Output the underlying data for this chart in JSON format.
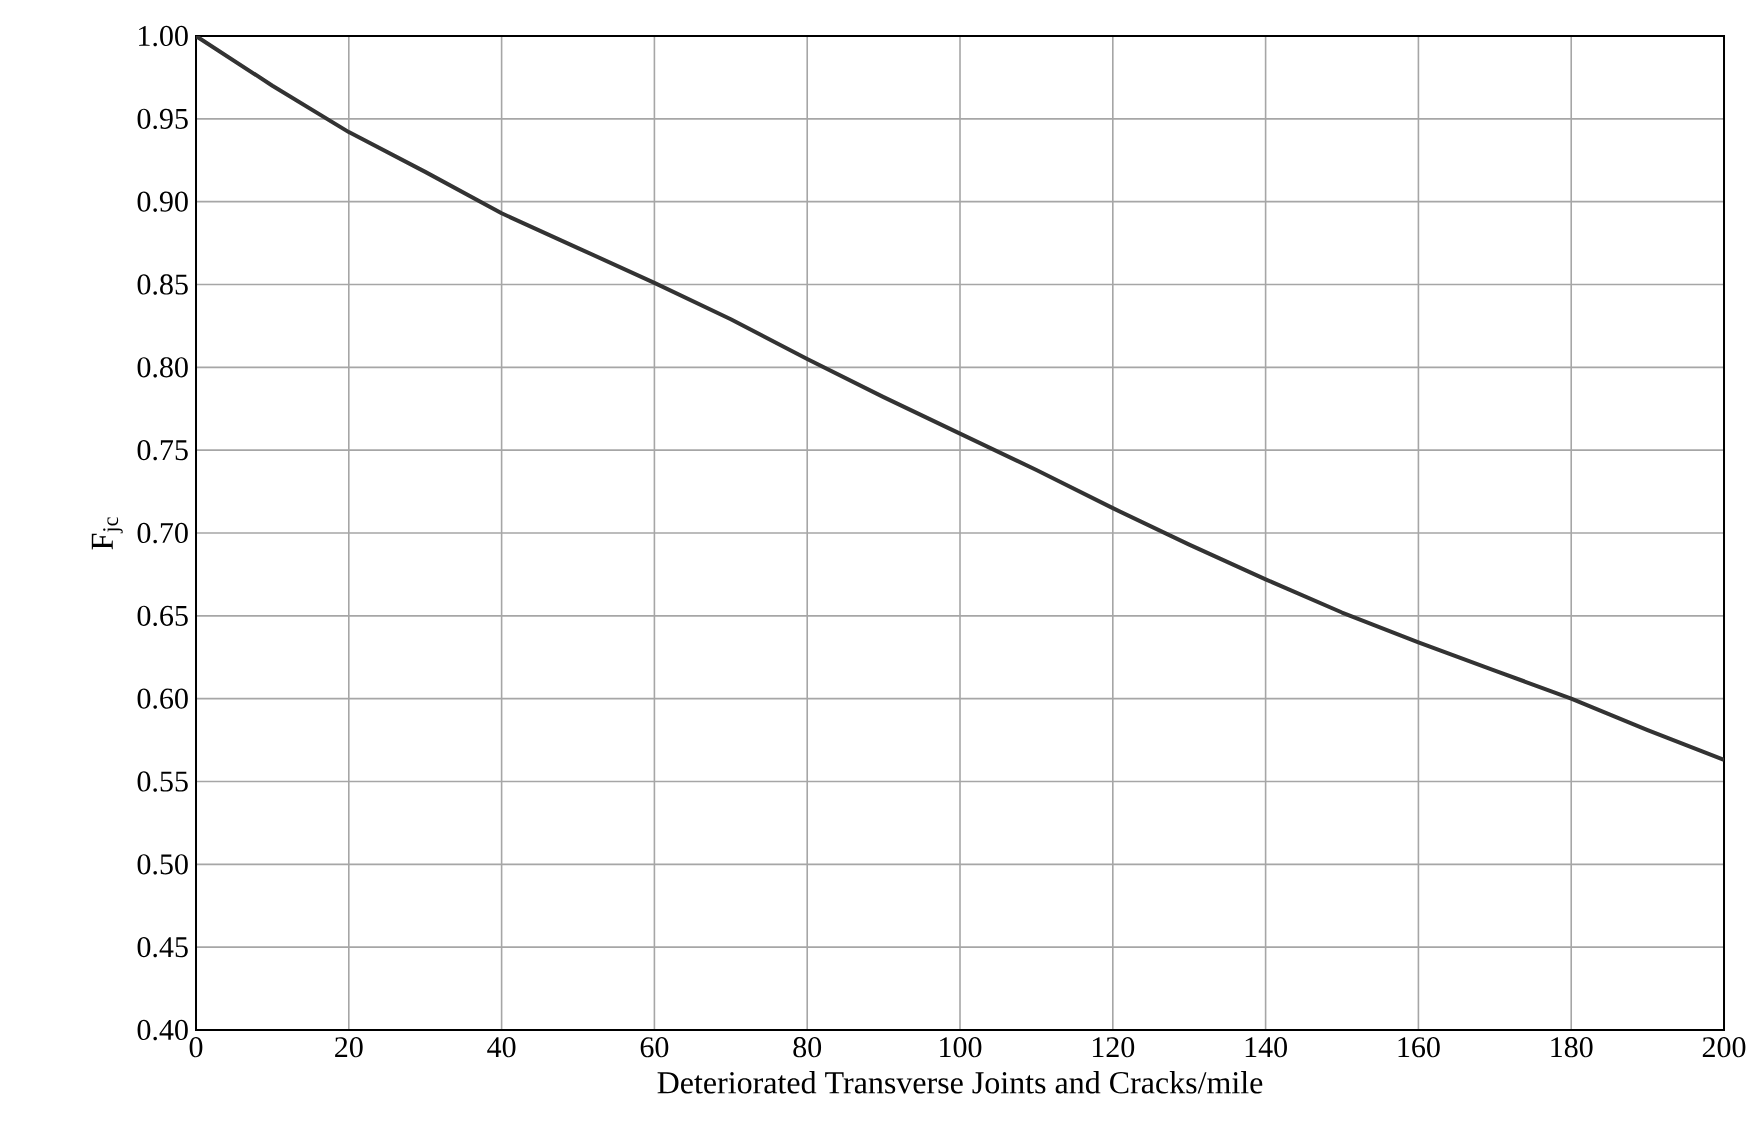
{
  "chart_data": {
    "type": "line",
    "xlabel": "Deteriorated Transverse Joints and Cracks/mile",
    "ylabel": "F$_{jc}$",
    "x": [
      0,
      10,
      20,
      30,
      40,
      50,
      60,
      70,
      80,
      90,
      100,
      110,
      120,
      130,
      140,
      150,
      160,
      170,
      180,
      190,
      200
    ],
    "series": [
      {
        "color": "#333333",
        "values": [
          1.0,
          0.97,
          0.942,
          0.918,
          0.893,
          0.872,
          0.851,
          0.829,
          0.805,
          0.782,
          0.76,
          0.738,
          0.715,
          0.693,
          0.672,
          0.652,
          0.634,
          0.617,
          0.6,
          0.581,
          0.563
        ]
      }
    ],
    "xlim": [
      0,
      200
    ],
    "ylim": [
      0.4,
      1.0
    ],
    "xticks": [
      0,
      20,
      40,
      60,
      80,
      100,
      120,
      140,
      160,
      180,
      200
    ],
    "yticks": [
      {
        "value": 0.4,
        "label": "0.40"
      },
      {
        "value": 0.45,
        "label": "0.45"
      },
      {
        "value": 0.5,
        "label": "0.50"
      },
      {
        "value": 0.55,
        "label": "0.55"
      },
      {
        "value": 0.6,
        "label": "0.60"
      },
      {
        "value": 0.65,
        "label": "0.65"
      },
      {
        "value": 0.7,
        "label": "0.70"
      },
      {
        "value": 0.75,
        "label": "0.75"
      },
      {
        "value": 0.8,
        "label": "0.80"
      },
      {
        "value": 0.85,
        "label": "0.85"
      },
      {
        "value": 0.9,
        "label": "0.90"
      },
      {
        "value": 0.95,
        "label": "0.95"
      },
      {
        "value": 1.0,
        "label": "1.00"
      }
    ],
    "grid": true,
    "marker": "none",
    "line_style": "solid"
  }
}
